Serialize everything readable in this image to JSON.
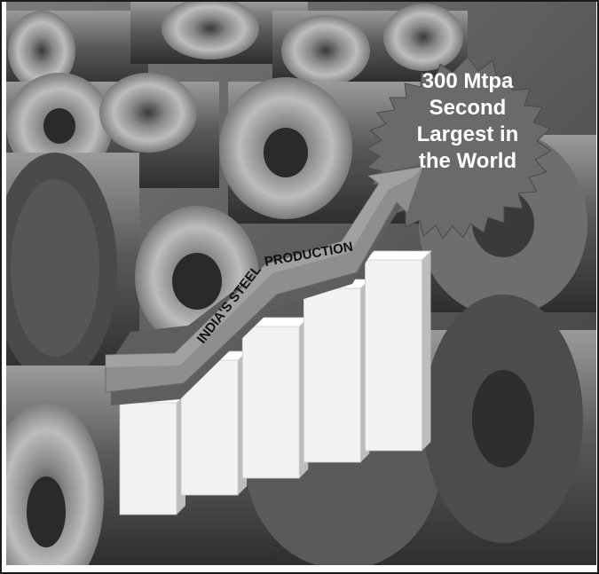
{
  "badge": {
    "line1": "300 Mtpa",
    "line2": "Second",
    "line3": "Largest in",
    "line4": "the World"
  },
  "arrow": {
    "label_vertical": "INDIA'S STEEL",
    "label_horizontal": "PRODUCTION"
  },
  "chart_data": {
    "type": "bar",
    "categories": [
      "",
      "",
      "",
      "",
      ""
    ],
    "series": [
      {
        "values": [
          1.0,
          1.2,
          1.35,
          1.55,
          1.7
        ]
      }
    ]
  },
  "colors": {
    "background": "#5a5a5a",
    "bar_face": "#f2f2f2",
    "arrow": "#8a8a8a",
    "badge": "#6a6a6a"
  }
}
